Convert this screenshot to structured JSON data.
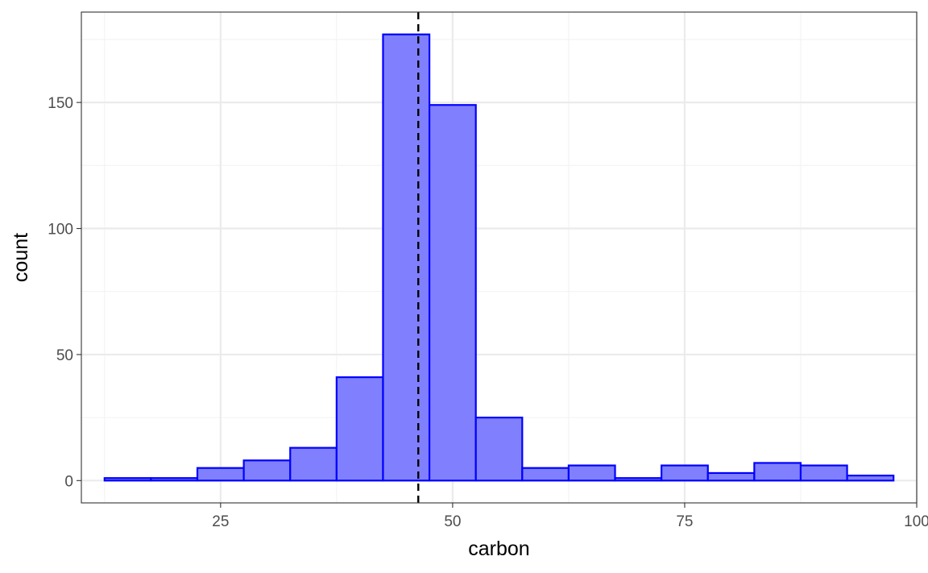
{
  "chart_data": {
    "type": "bar",
    "xlabel": "carbon",
    "ylabel": "count",
    "xlim": [
      10,
      100
    ],
    "ylim": [
      -8.85,
      185.85
    ],
    "x_ticks": [
      25,
      50,
      75,
      100
    ],
    "y_ticks": [
      0,
      50,
      100,
      150
    ],
    "x_tick_labels": [
      "25",
      "50",
      "75",
      "100"
    ],
    "y_tick_labels": [
      "0",
      "50",
      "100",
      "150"
    ],
    "bin_width": 5,
    "bins": [
      {
        "x0": 12.5,
        "x1": 17.5,
        "count": 1
      },
      {
        "x0": 17.5,
        "x1": 22.5,
        "count": 1
      },
      {
        "x0": 22.5,
        "x1": 27.5,
        "count": 5
      },
      {
        "x0": 27.5,
        "x1": 32.5,
        "count": 8
      },
      {
        "x0": 32.5,
        "x1": 37.5,
        "count": 13
      },
      {
        "x0": 37.5,
        "x1": 42.5,
        "count": 41
      },
      {
        "x0": 42.5,
        "x1": 47.5,
        "count": 177
      },
      {
        "x0": 47.5,
        "x1": 52.5,
        "count": 149
      },
      {
        "x0": 52.5,
        "x1": 57.5,
        "count": 25
      },
      {
        "x0": 57.5,
        "x1": 62.5,
        "count": 5
      },
      {
        "x0": 62.5,
        "x1": 67.5,
        "count": 6
      },
      {
        "x0": 67.5,
        "x1": 72.5,
        "count": 1
      },
      {
        "x0": 72.5,
        "x1": 77.5,
        "count": 6
      },
      {
        "x0": 77.5,
        "x1": 82.5,
        "count": 3
      },
      {
        "x0": 82.5,
        "x1": 87.5,
        "count": 7
      },
      {
        "x0": 87.5,
        "x1": 92.5,
        "count": 6
      },
      {
        "x0": 92.5,
        "x1": 97.5,
        "count": 2
      }
    ],
    "reference_line": {
      "x": 46.3,
      "style": "dashed",
      "color": "#000000"
    },
    "bar_fill": "#8080ff",
    "bar_stroke": "#0000ff",
    "grid": true,
    "legend": "none",
    "panel_border_color": "#333333",
    "grid_major_color": "#ebebeb",
    "grid_minor_color": "#f2f2f2"
  }
}
